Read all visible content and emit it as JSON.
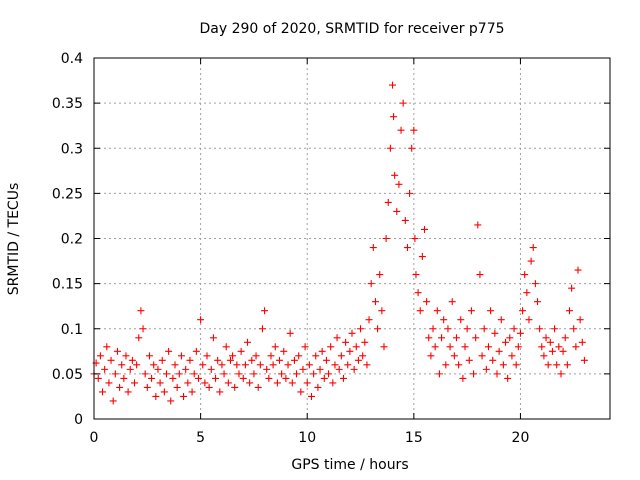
{
  "chart_data": {
    "type": "scatter",
    "title": "Day 290 of 2020, SRMTID for receiver p775",
    "xlabel": "GPS time / hours",
    "ylabel": "SRMTID / TECUs",
    "xlim": [
      0,
      24.2
    ],
    "ylim": [
      0,
      0.4
    ],
    "x_ticks": [
      0,
      5,
      10,
      15,
      20
    ],
    "x_tick_labels": [
      "0",
      "5",
      "10",
      "15",
      "20"
    ],
    "y_ticks": [
      0,
      0.05,
      0.1,
      0.15,
      0.2,
      0.25,
      0.3,
      0.35,
      0.4
    ],
    "y_tick_labels": [
      "0",
      "0.05",
      "0.1",
      "0.15",
      "0.2",
      "0.25",
      "0.3",
      "0.35",
      "0.4"
    ],
    "grid": true,
    "marker": "+",
    "marker_color": "#ff0000",
    "series": [
      {
        "name": "SRMTID",
        "points": [
          [
            0.0,
            0.05
          ],
          [
            0.1,
            0.062
          ],
          [
            0.2,
            0.045
          ],
          [
            0.3,
            0.07
          ],
          [
            0.4,
            0.03
          ],
          [
            0.5,
            0.055
          ],
          [
            0.6,
            0.08
          ],
          [
            0.7,
            0.04
          ],
          [
            0.8,
            0.065
          ],
          [
            0.9,
            0.02
          ],
          [
            1.0,
            0.05
          ],
          [
            1.1,
            0.075
          ],
          [
            1.2,
            0.035
          ],
          [
            1.3,
            0.06
          ],
          [
            1.4,
            0.045
          ],
          [
            1.5,
            0.07
          ],
          [
            1.6,
            0.03
          ],
          [
            1.7,
            0.055
          ],
          [
            1.8,
            0.065
          ],
          [
            1.9,
            0.04
          ],
          [
            2.0,
            0.06
          ],
          [
            2.1,
            0.09
          ],
          [
            2.2,
            0.12
          ],
          [
            2.3,
            0.1
          ],
          [
            2.4,
            0.05
          ],
          [
            2.5,
            0.035
          ],
          [
            2.6,
            0.07
          ],
          [
            2.7,
            0.045
          ],
          [
            2.8,
            0.06
          ],
          [
            2.9,
            0.025
          ],
          [
            3.0,
            0.055
          ],
          [
            3.1,
            0.04
          ],
          [
            3.2,
            0.065
          ],
          [
            3.3,
            0.03
          ],
          [
            3.4,
            0.05
          ],
          [
            3.5,
            0.075
          ],
          [
            3.6,
            0.02
          ],
          [
            3.7,
            0.045
          ],
          [
            3.8,
            0.06
          ],
          [
            3.9,
            0.035
          ],
          [
            4.0,
            0.05
          ],
          [
            4.1,
            0.07
          ],
          [
            4.2,
            0.025
          ],
          [
            4.3,
            0.055
          ],
          [
            4.4,
            0.04
          ],
          [
            4.5,
            0.065
          ],
          [
            4.6,
            0.03
          ],
          [
            4.7,
            0.05
          ],
          [
            4.8,
            0.075
          ],
          [
            4.9,
            0.045
          ],
          [
            5.0,
            0.11
          ],
          [
            5.1,
            0.06
          ],
          [
            5.2,
            0.04
          ],
          [
            5.3,
            0.07
          ],
          [
            5.4,
            0.035
          ],
          [
            5.5,
            0.055
          ],
          [
            5.6,
            0.09
          ],
          [
            5.7,
            0.045
          ],
          [
            5.8,
            0.065
          ],
          [
            5.9,
            0.03
          ],
          [
            6.0,
            0.06
          ],
          [
            6.1,
            0.05
          ],
          [
            6.2,
            0.08
          ],
          [
            6.3,
            0.04
          ],
          [
            6.4,
            0.065
          ],
          [
            6.5,
            0.07
          ],
          [
            6.6,
            0.035
          ],
          [
            6.7,
            0.06
          ],
          [
            6.8,
            0.05
          ],
          [
            6.9,
            0.075
          ],
          [
            7.0,
            0.045
          ],
          [
            7.1,
            0.06
          ],
          [
            7.2,
            0.085
          ],
          [
            7.3,
            0.04
          ],
          [
            7.4,
            0.065
          ],
          [
            7.5,
            0.05
          ],
          [
            7.6,
            0.07
          ],
          [
            7.7,
            0.035
          ],
          [
            7.8,
            0.06
          ],
          [
            7.9,
            0.1
          ],
          [
            8.0,
            0.12
          ],
          [
            8.1,
            0.055
          ],
          [
            8.2,
            0.045
          ],
          [
            8.3,
            0.07
          ],
          [
            8.4,
            0.06
          ],
          [
            8.5,
            0.08
          ],
          [
            8.6,
            0.04
          ],
          [
            8.7,
            0.065
          ],
          [
            8.8,
            0.05
          ],
          [
            8.9,
            0.075
          ],
          [
            9.0,
            0.045
          ],
          [
            9.1,
            0.06
          ],
          [
            9.2,
            0.095
          ],
          [
            9.3,
            0.04
          ],
          [
            9.4,
            0.065
          ],
          [
            9.5,
            0.05
          ],
          [
            9.6,
            0.07
          ],
          [
            9.7,
            0.03
          ],
          [
            9.8,
            0.055
          ],
          [
            9.9,
            0.08
          ],
          [
            10.0,
            0.04
          ],
          [
            10.1,
            0.06
          ],
          [
            10.2,
            0.025
          ],
          [
            10.3,
            0.05
          ],
          [
            10.4,
            0.07
          ],
          [
            10.5,
            0.035
          ],
          [
            10.6,
            0.055
          ],
          [
            10.7,
            0.075
          ],
          [
            10.8,
            0.045
          ],
          [
            10.9,
            0.065
          ],
          [
            11.0,
            0.05
          ],
          [
            11.1,
            0.08
          ],
          [
            11.2,
            0.04
          ],
          [
            11.3,
            0.06
          ],
          [
            11.4,
            0.09
          ],
          [
            11.5,
            0.055
          ],
          [
            11.6,
            0.07
          ],
          [
            11.7,
            0.045
          ],
          [
            11.8,
            0.085
          ],
          [
            11.9,
            0.06
          ],
          [
            12.0,
            0.075
          ],
          [
            12.1,
            0.095
          ],
          [
            12.2,
            0.055
          ],
          [
            12.3,
            0.08
          ],
          [
            12.4,
            0.065
          ],
          [
            12.5,
            0.1
          ],
          [
            12.6,
            0.07
          ],
          [
            12.7,
            0.085
          ],
          [
            12.8,
            0.06
          ],
          [
            12.9,
            0.11
          ],
          [
            13.0,
            0.15
          ],
          [
            13.1,
            0.19
          ],
          [
            13.2,
            0.13
          ],
          [
            13.3,
            0.1
          ],
          [
            13.4,
            0.16
          ],
          [
            13.5,
            0.12
          ],
          [
            13.6,
            0.08
          ],
          [
            13.7,
            0.2
          ],
          [
            13.8,
            0.24
          ],
          [
            13.9,
            0.3
          ],
          [
            14.0,
            0.37
          ],
          [
            14.05,
            0.335
          ],
          [
            14.1,
            0.27
          ],
          [
            14.2,
            0.23
          ],
          [
            14.3,
            0.26
          ],
          [
            14.4,
            0.32
          ],
          [
            14.5,
            0.35
          ],
          [
            14.6,
            0.22
          ],
          [
            14.7,
            0.19
          ],
          [
            14.8,
            0.25
          ],
          [
            14.9,
            0.3
          ],
          [
            15.0,
            0.32
          ],
          [
            15.05,
            0.2
          ],
          [
            15.1,
            0.16
          ],
          [
            15.2,
            0.14
          ],
          [
            15.3,
            0.12
          ],
          [
            15.4,
            0.18
          ],
          [
            15.5,
            0.21
          ],
          [
            15.6,
            0.13
          ],
          [
            15.7,
            0.09
          ],
          [
            15.8,
            0.07
          ],
          [
            15.9,
            0.1
          ],
          [
            16.0,
            0.08
          ],
          [
            16.1,
            0.12
          ],
          [
            16.2,
            0.05
          ],
          [
            16.3,
            0.09
          ],
          [
            16.4,
            0.11
          ],
          [
            16.5,
            0.06
          ],
          [
            16.6,
            0.1
          ],
          [
            16.7,
            0.08
          ],
          [
            16.8,
            0.13
          ],
          [
            16.9,
            0.07
          ],
          [
            17.0,
            0.09
          ],
          [
            17.1,
            0.06
          ],
          [
            17.2,
            0.11
          ],
          [
            17.3,
            0.045
          ],
          [
            17.4,
            0.08
          ],
          [
            17.5,
            0.1
          ],
          [
            17.6,
            0.065
          ],
          [
            17.7,
            0.12
          ],
          [
            17.8,
            0.05
          ],
          [
            17.9,
            0.09
          ],
          [
            18.0,
            0.215
          ],
          [
            18.1,
            0.16
          ],
          [
            18.2,
            0.07
          ],
          [
            18.3,
            0.1
          ],
          [
            18.4,
            0.055
          ],
          [
            18.5,
            0.08
          ],
          [
            18.6,
            0.12
          ],
          [
            18.7,
            0.065
          ],
          [
            18.8,
            0.095
          ],
          [
            18.9,
            0.05
          ],
          [
            19.0,
            0.075
          ],
          [
            19.1,
            0.11
          ],
          [
            19.2,
            0.06
          ],
          [
            19.3,
            0.085
          ],
          [
            19.4,
            0.045
          ],
          [
            19.5,
            0.09
          ],
          [
            19.6,
            0.07
          ],
          [
            19.7,
            0.1
          ],
          [
            19.8,
            0.06
          ],
          [
            19.9,
            0.08
          ],
          [
            20.0,
            0.095
          ],
          [
            20.1,
            0.12
          ],
          [
            20.2,
            0.16
          ],
          [
            20.3,
            0.14
          ],
          [
            20.4,
            0.11
          ],
          [
            20.5,
            0.175
          ],
          [
            20.6,
            0.19
          ],
          [
            20.7,
            0.15
          ],
          [
            20.8,
            0.13
          ],
          [
            20.9,
            0.1
          ],
          [
            21.0,
            0.08
          ],
          [
            21.1,
            0.07
          ],
          [
            21.2,
            0.09
          ],
          [
            21.3,
            0.06
          ],
          [
            21.4,
            0.085
          ],
          [
            21.5,
            0.075
          ],
          [
            21.6,
            0.1
          ],
          [
            21.7,
            0.06
          ],
          [
            21.8,
            0.08
          ],
          [
            21.9,
            0.05
          ],
          [
            22.0,
            0.075
          ],
          [
            22.1,
            0.09
          ],
          [
            22.2,
            0.06
          ],
          [
            22.3,
            0.12
          ],
          [
            22.4,
            0.145
          ],
          [
            22.5,
            0.1
          ],
          [
            22.6,
            0.08
          ],
          [
            22.7,
            0.165
          ],
          [
            22.8,
            0.11
          ],
          [
            22.9,
            0.085
          ],
          [
            23.0,
            0.065
          ]
        ]
      }
    ]
  }
}
